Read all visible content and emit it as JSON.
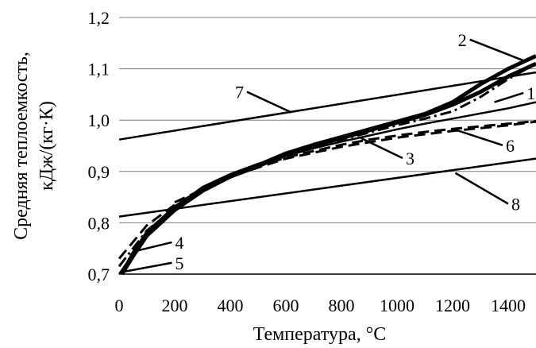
{
  "chart_data": {
    "type": "line",
    "xlabel": "Температура, °С",
    "ylabel_lines": [
      "Средняя теплоемкость,",
      "кДж/(кг·К)"
    ],
    "xlim": [
      0,
      1500
    ],
    "ylim": [
      0.7,
      1.2
    ],
    "x_ticks": [
      "0",
      "200",
      "400",
      "600",
      "800",
      "1000",
      "1200",
      "1400"
    ],
    "y_ticks": [
      "0,7",
      "0,8",
      "0,9",
      "1,0",
      "1,1",
      "1,2"
    ],
    "grid": "horizontal",
    "series": [
      {
        "label": "1",
        "style": "solid-thick",
        "points": [
          [
            10,
            0.7
          ],
          [
            50,
            0.74
          ],
          [
            100,
            0.78
          ],
          [
            200,
            0.83
          ],
          [
            300,
            0.865
          ],
          [
            400,
            0.89
          ],
          [
            500,
            0.91
          ],
          [
            600,
            0.935
          ],
          [
            700,
            0.95
          ],
          [
            800,
            0.965
          ],
          [
            900,
            0.98
          ],
          [
            1000,
            0.995
          ],
          [
            1100,
            1.01
          ],
          [
            1200,
            1.03
          ],
          [
            1300,
            1.055
          ],
          [
            1400,
            1.085
          ],
          [
            1500,
            1.11
          ]
        ]
      },
      {
        "label": "2",
        "style": "solid-thick",
        "points": [
          [
            10,
            0.7
          ],
          [
            50,
            0.735
          ],
          [
            100,
            0.775
          ],
          [
            200,
            0.825
          ],
          [
            300,
            0.862
          ],
          [
            400,
            0.89
          ],
          [
            500,
            0.912
          ],
          [
            600,
            0.935
          ],
          [
            700,
            0.952
          ],
          [
            800,
            0.967
          ],
          [
            900,
            0.982
          ],
          [
            1000,
            0.997
          ],
          [
            1100,
            1.012
          ],
          [
            1200,
            1.035
          ],
          [
            1300,
            1.07
          ],
          [
            1400,
            1.1
          ],
          [
            1500,
            1.125
          ]
        ]
      },
      {
        "label": "3",
        "style": "solid",
        "points": [
          [
            0,
            0.7
          ],
          [
            100,
            0.78
          ],
          [
            200,
            0.83
          ],
          [
            300,
            0.87
          ],
          [
            400,
            0.895
          ],
          [
            500,
            0.915
          ],
          [
            600,
            0.93
          ],
          [
            700,
            0.945
          ],
          [
            800,
            0.958
          ],
          [
            900,
            0.97
          ],
          [
            1000,
            0.982
          ],
          [
            1100,
            0.993
          ],
          [
            1200,
            1.003
          ],
          [
            1300,
            1.013
          ],
          [
            1400,
            1.023
          ],
          [
            1500,
            1.035
          ]
        ]
      },
      {
        "label": "4",
        "style": "dashed",
        "points": [
          [
            0,
            0.73
          ],
          [
            100,
            0.795
          ],
          [
            200,
            0.835
          ],
          [
            300,
            0.865
          ],
          [
            400,
            0.89
          ],
          [
            500,
            0.91
          ],
          [
            600,
            0.927
          ],
          [
            700,
            0.94
          ],
          [
            800,
            0.952
          ],
          [
            900,
            0.962
          ],
          [
            1000,
            0.97
          ],
          [
            1100,
            0.977
          ],
          [
            1200,
            0.983
          ],
          [
            1300,
            0.988
          ],
          [
            1400,
            0.993
          ],
          [
            1500,
            0.998
          ]
        ]
      },
      {
        "label": "5",
        "style": "dashdot",
        "points": [
          [
            0,
            0.715
          ],
          [
            100,
            0.785
          ],
          [
            200,
            0.828
          ],
          [
            300,
            0.865
          ],
          [
            400,
            0.892
          ],
          [
            500,
            0.913
          ],
          [
            600,
            0.93
          ],
          [
            700,
            0.947
          ],
          [
            800,
            0.962
          ],
          [
            900,
            0.976
          ],
          [
            1000,
            0.99
          ],
          [
            1100,
            1.003
          ],
          [
            1200,
            1.017
          ],
          [
            1300,
            1.045
          ],
          [
            1400,
            1.08
          ],
          [
            1500,
            1.11
          ]
        ]
      },
      {
        "label": "6",
        "style": "dashed",
        "points": [
          [
            200,
            0.84
          ],
          [
            400,
            0.89
          ],
          [
            600,
            0.925
          ],
          [
            800,
            0.948
          ],
          [
            1000,
            0.966
          ],
          [
            1200,
            0.979
          ],
          [
            1400,
            0.99
          ],
          [
            1500,
            0.997
          ]
        ]
      },
      {
        "label": "7",
        "style": "solid",
        "points": [
          [
            0,
            0.962
          ],
          [
            1500,
            1.093
          ]
        ]
      },
      {
        "label": "8",
        "style": "solid",
        "points": [
          [
            0,
            0.812
          ],
          [
            1500,
            0.925
          ]
        ]
      }
    ],
    "callouts": [
      {
        "label": "1",
        "at": [
          1350,
          1.035
        ],
        "text": [
          1455,
          1.053
        ]
      },
      {
        "label": "2",
        "at": [
          1460,
          1.115
        ],
        "text": [
          1262,
          1.157
        ]
      },
      {
        "label": "3",
        "at": [
          870,
          0.965
        ],
        "text": [
          1020,
          0.926
        ]
      },
      {
        "label": "4",
        "at": [
          60,
          0.745
        ],
        "text": [
          190,
          0.762
        ]
      },
      {
        "label": "5",
        "at": [
          20,
          0.705
        ],
        "text": [
          190,
          0.722
        ]
      },
      {
        "label": "6",
        "at": [
          1200,
          0.983
        ],
        "text": [
          1380,
          0.951
        ]
      },
      {
        "label": "7",
        "at": [
          620,
          1.015
        ],
        "text": [
          460,
          1.055
        ]
      },
      {
        "label": "8",
        "at": [
          1210,
          0.897
        ],
        "text": [
          1400,
          0.837
        ]
      }
    ]
  }
}
